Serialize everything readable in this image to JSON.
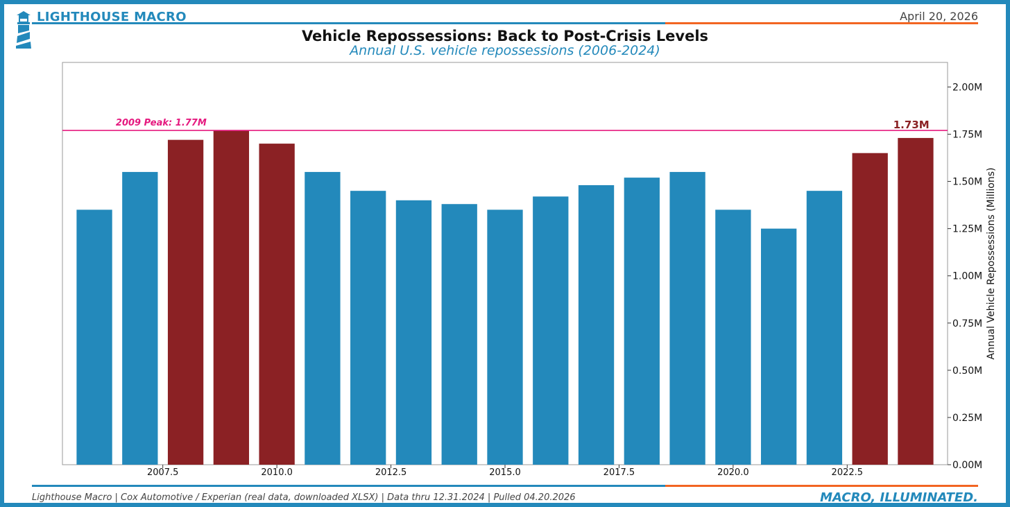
{
  "header": {
    "brand": "LIGHTHOUSE MACRO",
    "date": "April 20, 2026",
    "title": "Vehicle Repossessions: Back to Post-Crisis Levels",
    "subtitle": "Annual U.S. vehicle repossessions (2006-2024)"
  },
  "footer": {
    "source": "Lighthouse Macro | Cox Automotive / Experian (real data, downloaded XLSX) | Data thru 12.31.2024 | Pulled 04.20.2026",
    "tagline": "MACRO, ILLUMINATED."
  },
  "colors": {
    "accent": "#2389bb",
    "highlight": "#8b2124",
    "peak_line": "#e5197f",
    "orange": "#f26522"
  },
  "chart_data": {
    "type": "bar",
    "x": [
      2006,
      2007,
      2008,
      2009,
      2010,
      2011,
      2012,
      2013,
      2014,
      2015,
      2016,
      2017,
      2018,
      2019,
      2020,
      2021,
      2022,
      2023,
      2024
    ],
    "values": [
      1.35,
      1.55,
      1.72,
      1.77,
      1.7,
      1.55,
      1.45,
      1.4,
      1.38,
      1.35,
      1.42,
      1.48,
      1.52,
      1.55,
      1.35,
      1.25,
      1.45,
      1.65,
      1.73
    ],
    "highlighted": [
      false,
      false,
      true,
      true,
      true,
      false,
      false,
      false,
      false,
      false,
      false,
      false,
      false,
      false,
      false,
      false,
      false,
      true,
      true
    ],
    "ylabel": "Annual Vehicle Repossessions (Millions)",
    "ylim": [
      0,
      2.13
    ],
    "xlim": [
      2005.3,
      2024.7
    ],
    "y_axis_position": "right",
    "x_ticks": [
      2007.5,
      2010.0,
      2012.5,
      2015.0,
      2017.5,
      2020.0,
      2022.5
    ],
    "x_tick_labels": [
      "2007.5",
      "2010.0",
      "2012.5",
      "2015.0",
      "2017.5",
      "2020.0",
      "2022.5"
    ],
    "y_ticks": [
      0,
      0.25,
      0.5,
      0.75,
      1.0,
      1.25,
      1.5,
      1.75,
      2.0
    ],
    "y_tick_labels": [
      "0.00M",
      "0.25M",
      "0.50M",
      "0.75M",
      "1.00M",
      "1.25M",
      "1.50M",
      "1.75M",
      "2.00M"
    ],
    "peak_line": {
      "value": 1.77,
      "label": "2009 Peak: 1.77M"
    },
    "last_value_label": "1.73M",
    "grid": false
  }
}
